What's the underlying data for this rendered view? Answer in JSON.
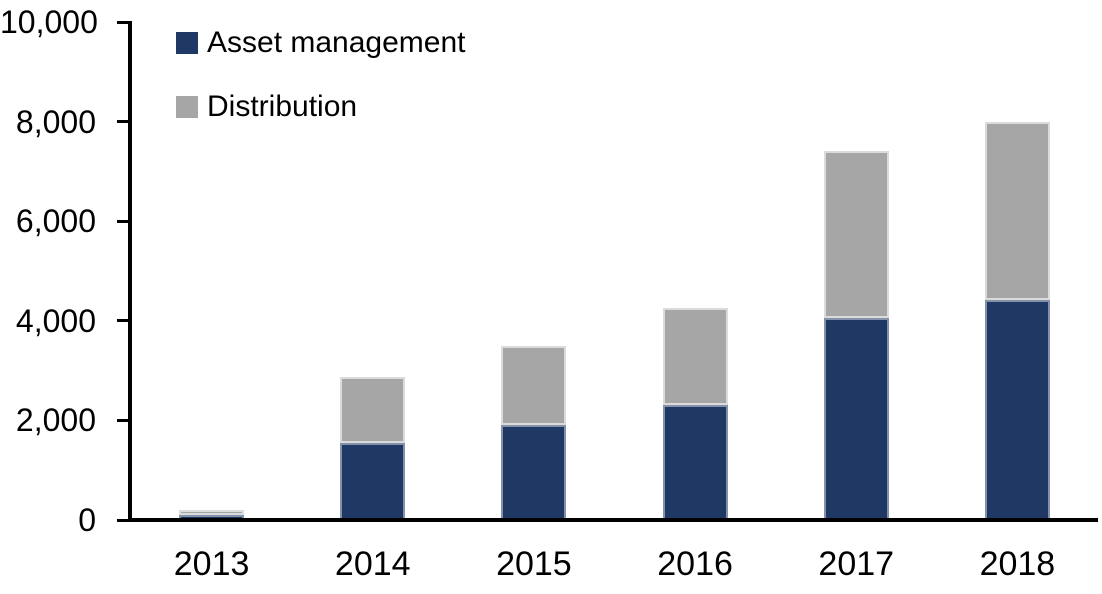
{
  "chart_data": {
    "type": "bar",
    "stacked": true,
    "title": "",
    "xlabel": "",
    "ylabel": "",
    "categories": [
      "2013",
      "2014",
      "2015",
      "2016",
      "2017",
      "2018"
    ],
    "series": [
      {
        "name": "Asset management",
        "color": "#1F3864",
        "values": [
          110,
          1550,
          1900,
          2310,
          4050,
          4420
        ]
      },
      {
        "name": "Distribution",
        "color": "#A6A6A6",
        "values": [
          90,
          1330,
          1600,
          1950,
          3350,
          3580
        ]
      }
    ],
    "totals": [
      200,
      2880,
      3500,
      4260,
      7400,
      8000
    ],
    "ylim": [
      0,
      10000
    ],
    "yticks": [
      0,
      2000,
      4000,
      6000,
      8000,
      10000
    ],
    "ytick_labels": [
      "0",
      "2,000",
      "4,000",
      "6,000",
      "8,000",
      "10,000"
    ],
    "grid": false,
    "legend_position": "top-left",
    "axis_color": "#000000",
    "text_color": "#000000",
    "background_color": "#FFFFFF"
  }
}
